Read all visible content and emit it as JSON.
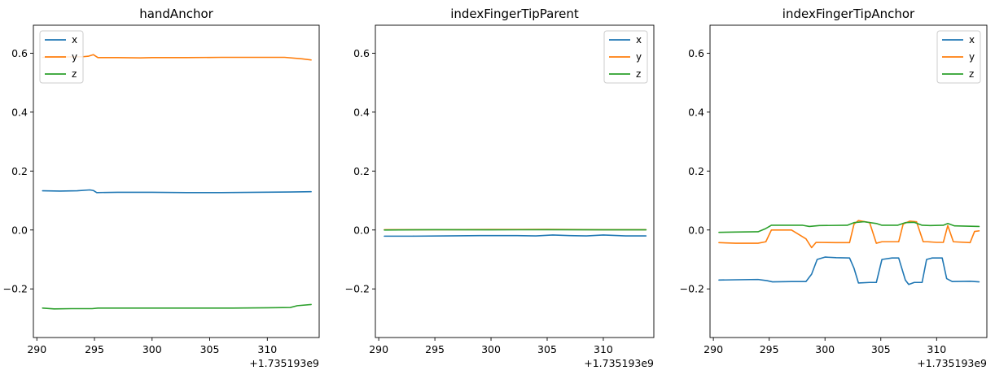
{
  "colors": {
    "x": "#1f77b4",
    "y": "#ff7f0e",
    "z": "#2ca02c"
  },
  "chart_data": [
    {
      "type": "line",
      "title": "handAnchor",
      "x_offset_label": "+1.735193e9",
      "xlim": [
        289.7,
        314.5
      ],
      "ylim": [
        -0.365,
        0.695
      ],
      "xticks": [
        290,
        295,
        300,
        305,
        310
      ],
      "yticks": [
        -0.2,
        0.0,
        0.2,
        0.4,
        0.6
      ],
      "ytick_labels": [
        "−0.2",
        "0.0",
        "0.2",
        "0.4",
        "0.6"
      ],
      "legend_position": "upper left",
      "series": [
        {
          "name": "x",
          "x": [
            290.5,
            292,
            293.5,
            294.6,
            294.9,
            295.2,
            297,
            300,
            303,
            306,
            309,
            312,
            313.8
          ],
          "y": [
            0.133,
            0.132,
            0.133,
            0.136,
            0.134,
            0.127,
            0.128,
            0.128,
            0.127,
            0.127,
            0.128,
            0.129,
            0.13
          ]
        },
        {
          "name": "y",
          "x": [
            290.5,
            292,
            294,
            294.5,
            294.9,
            295.3,
            297,
            299,
            300,
            303,
            306,
            309,
            311.5,
            313,
            313.8
          ],
          "y": [
            0.586,
            0.587,
            0.588,
            0.59,
            0.595,
            0.585,
            0.585,
            0.584,
            0.585,
            0.585,
            0.586,
            0.586,
            0.586,
            0.581,
            0.577
          ]
        },
        {
          "name": "z",
          "x": [
            290.5,
            291.5,
            293,
            294.8,
            295.3,
            298,
            301,
            304,
            307,
            310,
            312,
            312.6,
            313.8
          ],
          "y": [
            -0.265,
            -0.268,
            -0.267,
            -0.267,
            -0.265,
            -0.265,
            -0.265,
            -0.265,
            -0.265,
            -0.264,
            -0.263,
            -0.257,
            -0.253
          ]
        }
      ]
    },
    {
      "type": "line",
      "title": "indexFingerTipParent",
      "x_offset_label": "+1.735193e9",
      "xlim": [
        289.7,
        314.5
      ],
      "ylim": [
        -0.365,
        0.695
      ],
      "xticks": [
        290,
        295,
        300,
        305,
        310
      ],
      "yticks": [
        -0.2,
        0.0,
        0.2,
        0.4,
        0.6
      ],
      "ytick_labels": [
        "−0.2",
        "0.0",
        "0.2",
        "0.4",
        "0.6"
      ],
      "legend_position": "upper right",
      "series": [
        {
          "name": "x",
          "x": [
            290.5,
            293,
            296,
            299,
            302,
            304,
            305.5,
            307,
            308.5,
            310,
            312,
            313.8
          ],
          "y": [
            -0.021,
            -0.021,
            -0.02,
            -0.019,
            -0.019,
            -0.02,
            -0.017,
            -0.019,
            -0.02,
            -0.017,
            -0.02,
            -0.02
          ]
        },
        {
          "name": "y",
          "x": [
            290.5,
            295,
            300,
            305,
            310,
            313.8
          ],
          "y": [
            0.001,
            0.001,
            0.0015,
            0.002,
            0.001,
            0.001
          ]
        },
        {
          "name": "z",
          "x": [
            290.5,
            295,
            300,
            305,
            310,
            313.8
          ],
          "y": [
            0.0,
            0.001,
            0.0005,
            0.001,
            0.0005,
            0.0005
          ]
        }
      ]
    },
    {
      "type": "line",
      "title": "indexFingerTipAnchor",
      "x_offset_label": "+1.735193e9",
      "xlim": [
        289.7,
        314.5
      ],
      "ylim": [
        -0.365,
        0.695
      ],
      "xticks": [
        290,
        295,
        300,
        305,
        310
      ],
      "yticks": [
        -0.2,
        0.0,
        0.2,
        0.4,
        0.6
      ],
      "ytick_labels": [
        "−0.2",
        "0.0",
        "0.2",
        "0.4",
        "0.6"
      ],
      "legend_position": "upper right",
      "series": [
        {
          "name": "x",
          "x": [
            290.5,
            292,
            294,
            294.8,
            295.3,
            297,
            298.3,
            298.8,
            299.3,
            300,
            301,
            302.2,
            302.6,
            303,
            304,
            304.6,
            305.1,
            306,
            306.6,
            307.2,
            307.5,
            308,
            308.7,
            309.1,
            309.6,
            310.5,
            310.9,
            311.4,
            313,
            313.8
          ],
          "y": [
            -0.17,
            -0.169,
            -0.168,
            -0.172,
            -0.176,
            -0.175,
            -0.175,
            -0.15,
            -0.1,
            -0.092,
            -0.094,
            -0.095,
            -0.13,
            -0.18,
            -0.178,
            -0.178,
            -0.1,
            -0.095,
            -0.095,
            -0.17,
            -0.185,
            -0.178,
            -0.178,
            -0.1,
            -0.095,
            -0.095,
            -0.165,
            -0.175,
            -0.174,
            -0.176
          ]
        },
        {
          "name": "y",
          "x": [
            290.5,
            292,
            294,
            294.7,
            295.2,
            297,
            298.3,
            298.8,
            299.2,
            301,
            302.2,
            302.6,
            303,
            304,
            304.6,
            305.1,
            306,
            306.6,
            307,
            307.6,
            308.2,
            308.8,
            309.2,
            310,
            310.6,
            311,
            311.5,
            313,
            313.4,
            313.8
          ],
          "y": [
            -0.043,
            -0.045,
            -0.045,
            -0.04,
            0.0,
            0.0,
            -0.03,
            -0.06,
            -0.042,
            -0.043,
            -0.043,
            0.02,
            0.032,
            0.025,
            -0.045,
            -0.04,
            -0.04,
            -0.04,
            0.02,
            0.03,
            0.028,
            -0.04,
            -0.04,
            -0.042,
            -0.042,
            0.015,
            -0.04,
            -0.043,
            -0.005,
            -0.003
          ]
        },
        {
          "name": "z",
          "x": [
            290.5,
            292,
            294,
            294.7,
            295.2,
            298,
            298.6,
            299.5,
            302,
            302.6,
            303.5,
            304.6,
            305.1,
            306.5,
            307.2,
            308,
            308.7,
            309.4,
            310.6,
            311,
            311.6,
            313.8
          ],
          "y": [
            -0.008,
            -0.007,
            -0.006,
            0.005,
            0.016,
            0.016,
            0.012,
            0.015,
            0.016,
            0.025,
            0.028,
            0.022,
            0.016,
            0.016,
            0.025,
            0.026,
            0.016,
            0.015,
            0.016,
            0.022,
            0.014,
            0.012
          ]
        }
      ]
    }
  ]
}
